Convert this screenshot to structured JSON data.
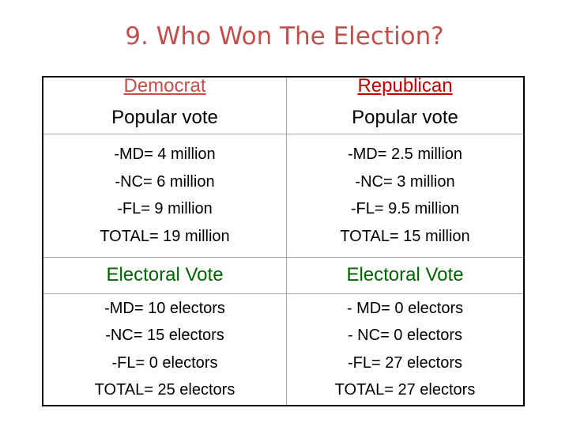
{
  "title": "9. Who Won The Election?",
  "democrat": {
    "party": "Democrat",
    "popular_label": "Popular vote",
    "popular_lines": [
      "-MD= 4 million",
      "-NC= 6 million",
      "-FL= 9 million",
      "TOTAL= 19 million"
    ],
    "electoral_label": "Electoral Vote",
    "electoral_lines": [
      "-MD= 10 electors",
      "-NC= 15 electors",
      "-FL= 0 electors",
      "TOTAL= 25 electors"
    ]
  },
  "republican": {
    "party": "Republican",
    "popular_label": "Popular vote",
    "popular_lines": [
      "-MD= 2.5 million",
      "-NC= 3 million",
      "-FL= 9.5 million",
      "TOTAL= 15 million"
    ],
    "electoral_label": "Electoral Vote",
    "electoral_lines": [
      "- MD= 0 electors",
      "- NC= 0 electors",
      "-FL= 27 electors",
      "TOTAL= 27 electors"
    ]
  },
  "colors": {
    "title": "#c0504d",
    "democrat_header": "#c0504d",
    "republican_header": "#c00000",
    "electoral_label": "#006400"
  }
}
